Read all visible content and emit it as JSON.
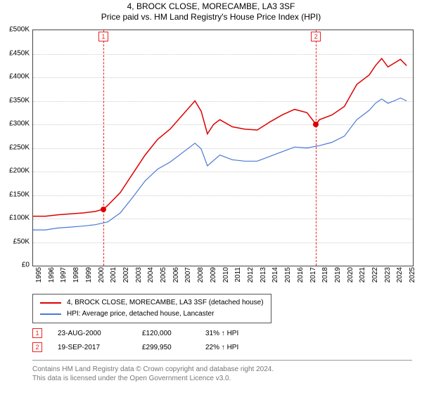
{
  "title": "4, BROCK CLOSE, MORECAMBE, LA3 3SF",
  "subtitle": "Price paid vs. HM Land Registry's House Price Index (HPI)",
  "chart": {
    "type": "line",
    "background_color": "#ffffff",
    "grid_color": "#cccccc",
    "x": {
      "min": 1995,
      "max": 2025.5,
      "ticks": [
        1995,
        1996,
        1997,
        1998,
        1999,
        2000,
        2001,
        2002,
        2003,
        2004,
        2005,
        2006,
        2007,
        2008,
        2009,
        2010,
        2011,
        2012,
        2013,
        2014,
        2015,
        2016,
        2017,
        2018,
        2019,
        2020,
        2021,
        2022,
        2023,
        2024,
        2025
      ]
    },
    "y": {
      "min": 0,
      "max": 500000,
      "tick_step": 50000,
      "tick_prefix": "£",
      "tick_suffix": "K"
    },
    "series": [
      {
        "name": "4, BROCK CLOSE, MORECAMBE, LA3 3SF (detached house)",
        "color": "#dd0000",
        "line_width": 1.5,
        "points": [
          [
            1995,
            105000
          ],
          [
            1996,
            105000
          ],
          [
            1997,
            108000
          ],
          [
            1998,
            110000
          ],
          [
            1999,
            112000
          ],
          [
            2000,
            115000
          ],
          [
            2000.65,
            120000
          ],
          [
            2001,
            128000
          ],
          [
            2002,
            155000
          ],
          [
            2003,
            195000
          ],
          [
            2004,
            235000
          ],
          [
            2005,
            268000
          ],
          [
            2006,
            290000
          ],
          [
            2007,
            320000
          ],
          [
            2008,
            350000
          ],
          [
            2008.5,
            328000
          ],
          [
            2009,
            280000
          ],
          [
            2009.5,
            300000
          ],
          [
            2010,
            310000
          ],
          [
            2011,
            295000
          ],
          [
            2012,
            290000
          ],
          [
            2013,
            288000
          ],
          [
            2014,
            305000
          ],
          [
            2015,
            320000
          ],
          [
            2016,
            332000
          ],
          [
            2017,
            325000
          ],
          [
            2017.72,
            299950
          ],
          [
            2018,
            310000
          ],
          [
            2019,
            320000
          ],
          [
            2020,
            338000
          ],
          [
            2021,
            385000
          ],
          [
            2022,
            405000
          ],
          [
            2022.5,
            425000
          ],
          [
            2023,
            440000
          ],
          [
            2023.5,
            422000
          ],
          [
            2024,
            430000
          ],
          [
            2024.5,
            438000
          ],
          [
            2025,
            425000
          ]
        ]
      },
      {
        "name": "HPI: Average price, detached house, Lancaster",
        "color": "#4a78d4",
        "line_width": 1.2,
        "points": [
          [
            1995,
            76000
          ],
          [
            1996,
            76000
          ],
          [
            1997,
            80000
          ],
          [
            1998,
            82000
          ],
          [
            1999,
            84000
          ],
          [
            2000,
            87000
          ],
          [
            2001,
            93000
          ],
          [
            2002,
            112000
          ],
          [
            2003,
            145000
          ],
          [
            2004,
            180000
          ],
          [
            2005,
            205000
          ],
          [
            2006,
            220000
          ],
          [
            2007,
            240000
          ],
          [
            2008,
            260000
          ],
          [
            2008.5,
            248000
          ],
          [
            2009,
            212000
          ],
          [
            2010,
            235000
          ],
          [
            2011,
            225000
          ],
          [
            2012,
            222000
          ],
          [
            2013,
            222000
          ],
          [
            2014,
            232000
          ],
          [
            2015,
            242000
          ],
          [
            2016,
            252000
          ],
          [
            2017,
            250000
          ],
          [
            2018,
            255000
          ],
          [
            2019,
            262000
          ],
          [
            2020,
            275000
          ],
          [
            2021,
            310000
          ],
          [
            2022,
            330000
          ],
          [
            2022.5,
            345000
          ],
          [
            2023,
            354000
          ],
          [
            2023.5,
            345000
          ],
          [
            2024,
            350000
          ],
          [
            2024.5,
            356000
          ],
          [
            2025,
            350000
          ]
        ]
      }
    ],
    "sale_markers": [
      {
        "label": "1",
        "x": 2000.65,
        "y": 120000
      },
      {
        "label": "2",
        "x": 2017.72,
        "y": 299950
      }
    ]
  },
  "legend": {
    "items": [
      {
        "color": "#dd0000",
        "text": "4, BROCK CLOSE, MORECAMBE, LA3 3SF (detached house)"
      },
      {
        "color": "#4a78d4",
        "text": "HPI: Average price, detached house, Lancaster"
      }
    ]
  },
  "sales": [
    {
      "marker": "1",
      "date": "23-AUG-2000",
      "price": "£120,000",
      "hpi": "31% ↑ HPI"
    },
    {
      "marker": "2",
      "date": "19-SEP-2017",
      "price": "£299,950",
      "hpi": "22% ↑ HPI"
    }
  ],
  "footer": {
    "line1": "Contains HM Land Registry data © Crown copyright and database right 2024.",
    "line2": "This data is licensed under the Open Government Licence v3.0."
  }
}
